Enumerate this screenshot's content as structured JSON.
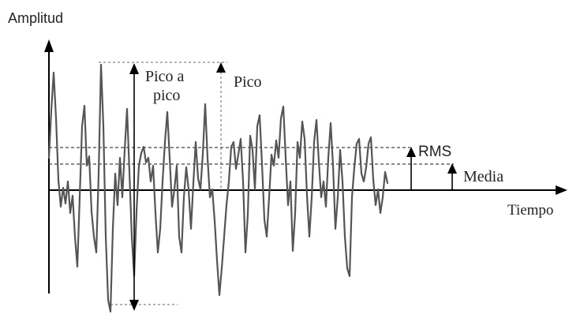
{
  "diagram": {
    "axis_y_label": "Amplitud",
    "axis_x_label": "Tiempo",
    "peak_to_peak_label_line1": "Pico a",
    "peak_to_peak_label_line2": "pico",
    "peak_label": "Pico",
    "rms_label": "RMS",
    "mean_label": "Media"
  }
}
